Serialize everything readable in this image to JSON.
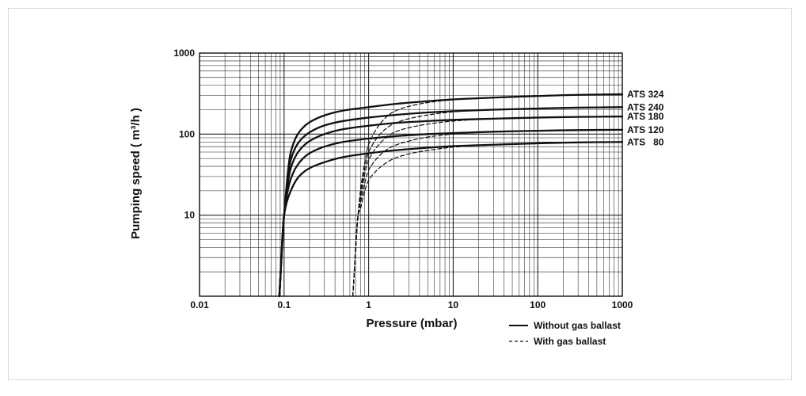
{
  "chart_data": {
    "type": "line",
    "xlabel": "Pressure (mbar)",
    "ylabel": "Pumping speed ( m³/h )",
    "xscale": "log",
    "yscale": "log",
    "xlim": [
      0.01,
      1000
    ],
    "ylim": [
      1,
      1000
    ],
    "grid": true,
    "x_ticks": [
      "0.01",
      "0.1",
      "1",
      "10",
      "100",
      "1000"
    ],
    "y_ticks": [
      "10",
      "100",
      "1000"
    ],
    "legend": [
      {
        "label": "Without gas ballast",
        "style": "solid"
      },
      {
        "label": "With gas ballast",
        "style": "dashed"
      }
    ],
    "legend_position": "bottom-right",
    "series": [
      {
        "name": "ATS 324",
        "style": "solid",
        "x": [
          0.088,
          0.1,
          0.12,
          0.15,
          0.2,
          0.3,
          0.5,
          1,
          2,
          5,
          10,
          30,
          100,
          300,
          1000
        ],
        "y": [
          1,
          10,
          60,
          105,
          140,
          170,
          195,
          215,
          235,
          255,
          268,
          282,
          295,
          305,
          310
        ]
      },
      {
        "name": "ATS 240",
        "style": "solid",
        "x": [
          0.088,
          0.1,
          0.12,
          0.15,
          0.2,
          0.3,
          0.5,
          1,
          2,
          5,
          10,
          30,
          100,
          300,
          1000
        ],
        "y": [
          1,
          10,
          48,
          80,
          105,
          128,
          145,
          160,
          172,
          185,
          192,
          200,
          207,
          212,
          215
        ]
      },
      {
        "name": "ATS 180",
        "style": "solid",
        "x": [
          0.088,
          0.1,
          0.12,
          0.15,
          0.2,
          0.3,
          0.5,
          1,
          2,
          5,
          10,
          30,
          100,
          300,
          1000
        ],
        "y": [
          1,
          10,
          38,
          62,
          82,
          100,
          115,
          127,
          137,
          145,
          150,
          155,
          160,
          163,
          165
        ]
      },
      {
        "name": "ATS 120",
        "style": "solid",
        "x": [
          0.088,
          0.1,
          0.12,
          0.15,
          0.2,
          0.3,
          0.5,
          1,
          2,
          5,
          10,
          30,
          100,
          300,
          1000
        ],
        "y": [
          1,
          10,
          28,
          44,
          58,
          70,
          80,
          88,
          94,
          100,
          103,
          107,
          110,
          112,
          113
        ]
      },
      {
        "name": "ATS 80",
        "style": "solid",
        "x": [
          0.088,
          0.1,
          0.12,
          0.15,
          0.2,
          0.3,
          0.5,
          1,
          2,
          5,
          10,
          30,
          100,
          300,
          1000
        ],
        "y": [
          1,
          10,
          20,
          30,
          38,
          45,
          52,
          58,
          63,
          68,
          71,
          74,
          77,
          79,
          80
        ]
      },
      {
        "name": "ATS 324",
        "style": "dashed",
        "x": [
          0.65,
          0.75,
          0.8,
          0.9,
          1,
          1.5,
          2,
          3,
          5,
          10,
          30,
          100,
          300,
          1000
        ],
        "y": [
          1,
          10,
          20,
          45,
          75,
          150,
          190,
          220,
          245,
          265,
          285,
          298,
          306,
          310
        ]
      },
      {
        "name": "ATS 240",
        "style": "dashed",
        "x": [
          0.65,
          0.75,
          0.8,
          0.9,
          1,
          1.5,
          2,
          3,
          5,
          10,
          30,
          100,
          300,
          1000
        ],
        "y": [
          1,
          10,
          18,
          38,
          60,
          110,
          135,
          155,
          172,
          188,
          200,
          207,
          212,
          215
        ]
      },
      {
        "name": "ATS 180",
        "style": "dashed",
        "x": [
          0.65,
          0.75,
          0.8,
          0.9,
          1,
          1.5,
          2,
          3,
          5,
          10,
          30,
          100,
          300,
          1000
        ],
        "y": [
          1,
          10,
          16,
          32,
          48,
          85,
          105,
          120,
          133,
          145,
          155,
          160,
          163,
          165
        ]
      },
      {
        "name": "ATS 120",
        "style": "dashed",
        "x": [
          0.65,
          0.75,
          0.8,
          0.9,
          1,
          1.5,
          2,
          3,
          5,
          10,
          30,
          100,
          300,
          1000
        ],
        "y": [
          1,
          10,
          14,
          25,
          36,
          60,
          72,
          82,
          92,
          100,
          107,
          110,
          112,
          113
        ]
      },
      {
        "name": "ATS 80",
        "style": "dashed",
        "x": [
          0.65,
          0.75,
          0.8,
          0.9,
          1,
          1.5,
          2,
          3,
          5,
          10,
          30,
          100,
          300,
          1000
        ],
        "y": [
          1,
          10,
          12,
          20,
          27,
          42,
          50,
          57,
          63,
          69,
          74,
          77,
          79,
          80
        ]
      }
    ],
    "series_labels": [
      "ATS 324",
      "ATS 240",
      "ATS 180",
      "ATS 120",
      "ATS   80"
    ]
  }
}
